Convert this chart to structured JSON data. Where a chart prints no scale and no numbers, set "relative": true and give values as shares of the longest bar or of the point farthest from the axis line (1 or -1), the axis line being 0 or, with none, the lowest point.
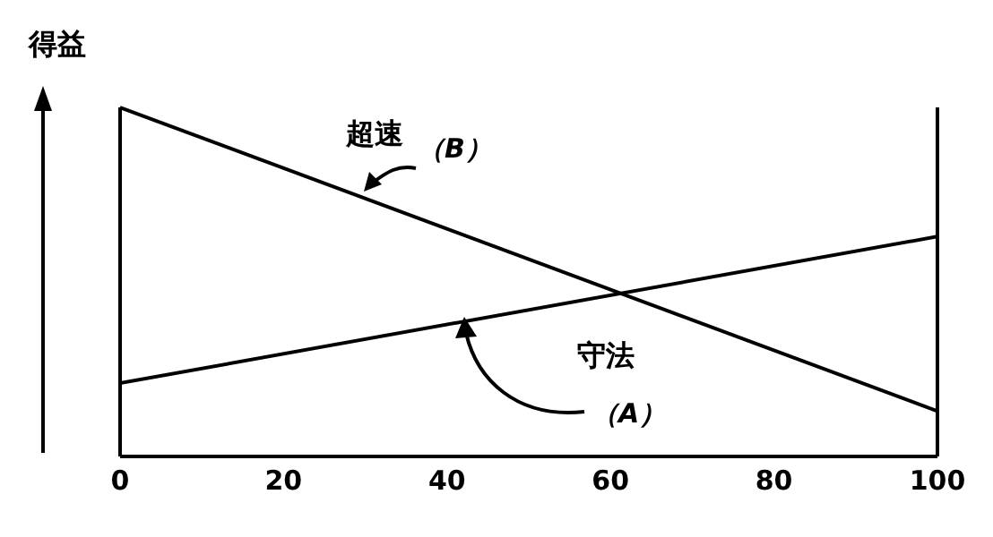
{
  "chart_data": {
    "type": "line",
    "ylabel": "得益",
    "relative": true,
    "x": [
      0,
      100
    ],
    "xlim": [
      0,
      100
    ],
    "xticks": [
      0,
      20,
      40,
      60,
      80,
      100
    ],
    "grid": false,
    "legend": false,
    "marker": "none",
    "line_style": "solid",
    "series": [
      {
        "name": "超速",
        "color": "#000000",
        "values": [
          1,
          0.13
        ]
      },
      {
        "name": "守法",
        "color": "#000000",
        "values": [
          0.21,
          0.63
        ]
      }
    ],
    "annotations": [
      "（B）",
      "（A）"
    ]
  }
}
